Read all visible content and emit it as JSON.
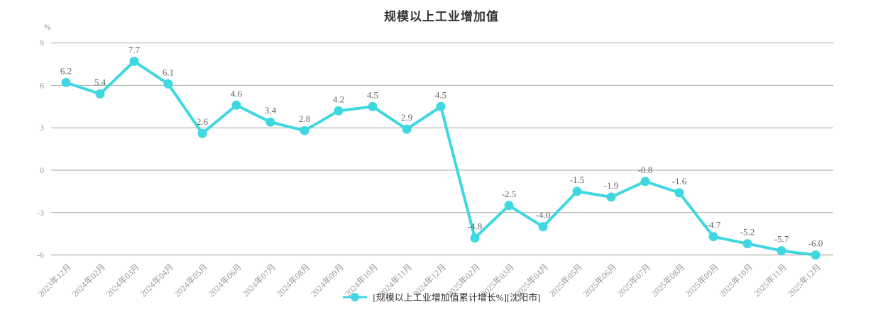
{
  "title": "规模以上工业增加值",
  "y_axis": {
    "unit": "%",
    "ticks": [
      9,
      6,
      3,
      0,
      -3,
      -6
    ]
  },
  "legend": {
    "label": "[规模以上工业增加值累计增长%][沈阳市]"
  },
  "colors": {
    "series": "#3fd8e0",
    "grid": "#aaaaaa",
    "axis_line": "#999999",
    "tick_label": "#999999",
    "value_label": "#666666",
    "title": "#333333",
    "legend_text": "#333333"
  },
  "chart_data": {
    "type": "line",
    "title": "规模以上工业增加值",
    "xlabel": "",
    "ylabel": "%",
    "ylim": [
      -6,
      9
    ],
    "yticks": [
      9,
      6,
      3,
      0,
      -3,
      -6
    ],
    "grid": true,
    "legend_position": "bottom",
    "marker": "circle",
    "data_labels": true,
    "categories": [
      "2023年12月",
      "2024年02月",
      "2024年03月",
      "2024年04月",
      "2024年05月",
      "2024年06月",
      "2024年07月",
      "2024年08月",
      "2024年09月",
      "2024年10月",
      "2024年11月",
      "2024年12月",
      "2025年02月",
      "2025年03月",
      "2025年04月",
      "2025年05月",
      "2025年06月",
      "2025年07月",
      "2025年08月",
      "2025年09月",
      "2025年10月",
      "2025年11月",
      "2025年12月"
    ],
    "series": [
      {
        "name": "[规模以上工业增加值累计增长%][沈阳市]",
        "values": [
          6.2,
          5.4,
          7.7,
          6.1,
          2.6,
          4.6,
          3.4,
          2.8,
          4.2,
          4.5,
          2.9,
          4.5,
          -4.8,
          -2.5,
          -4.0,
          -1.5,
          -1.9,
          -0.8,
          -1.6,
          -4.7,
          -5.2,
          -5.7,
          -6.0
        ]
      }
    ]
  }
}
